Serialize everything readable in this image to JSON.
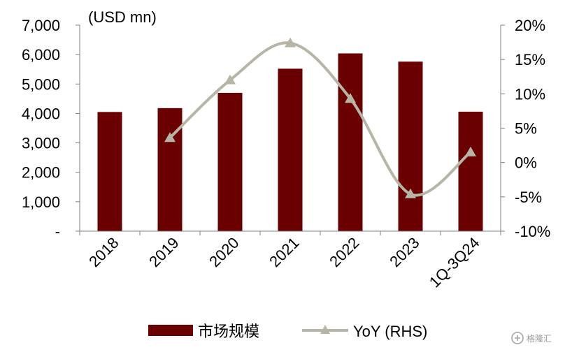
{
  "chart_data": {
    "type": "bar",
    "categories": [
      "2018",
      "2019",
      "2020",
      "2021",
      "2022",
      "2023",
      "1Q-3Q24"
    ],
    "y_unit_label": "(USD mn)",
    "y_left_ticks": [
      "-",
      "1,000",
      "2,000",
      "3,000",
      "4,000",
      "5,000",
      "6,000",
      "7,000"
    ],
    "y_left_range": [
      0,
      7000
    ],
    "y_right_ticks": [
      "-10%",
      "-5%",
      "0%",
      "5%",
      "10%",
      "15%",
      "20%"
    ],
    "y_right_range": [
      -10,
      20
    ],
    "series": [
      {
        "name": "市场规模",
        "type": "bar",
        "axis": "left",
        "color": "#6b0000",
        "values": [
          4050,
          4180,
          4700,
          5520,
          6040,
          5760,
          4060
        ]
      },
      {
        "name": "YoY (RHS)",
        "type": "line",
        "axis": "right",
        "color": "#b7b5a6",
        "marker": "triangle",
        "values": [
          null,
          3.6,
          12.0,
          17.4,
          9.3,
          -4.6,
          1.5
        ]
      }
    ],
    "legend_position": "bottom",
    "grid": false
  },
  "watermark": {
    "text": "格隆汇",
    "icon": "gelonghui-logo-icon"
  }
}
